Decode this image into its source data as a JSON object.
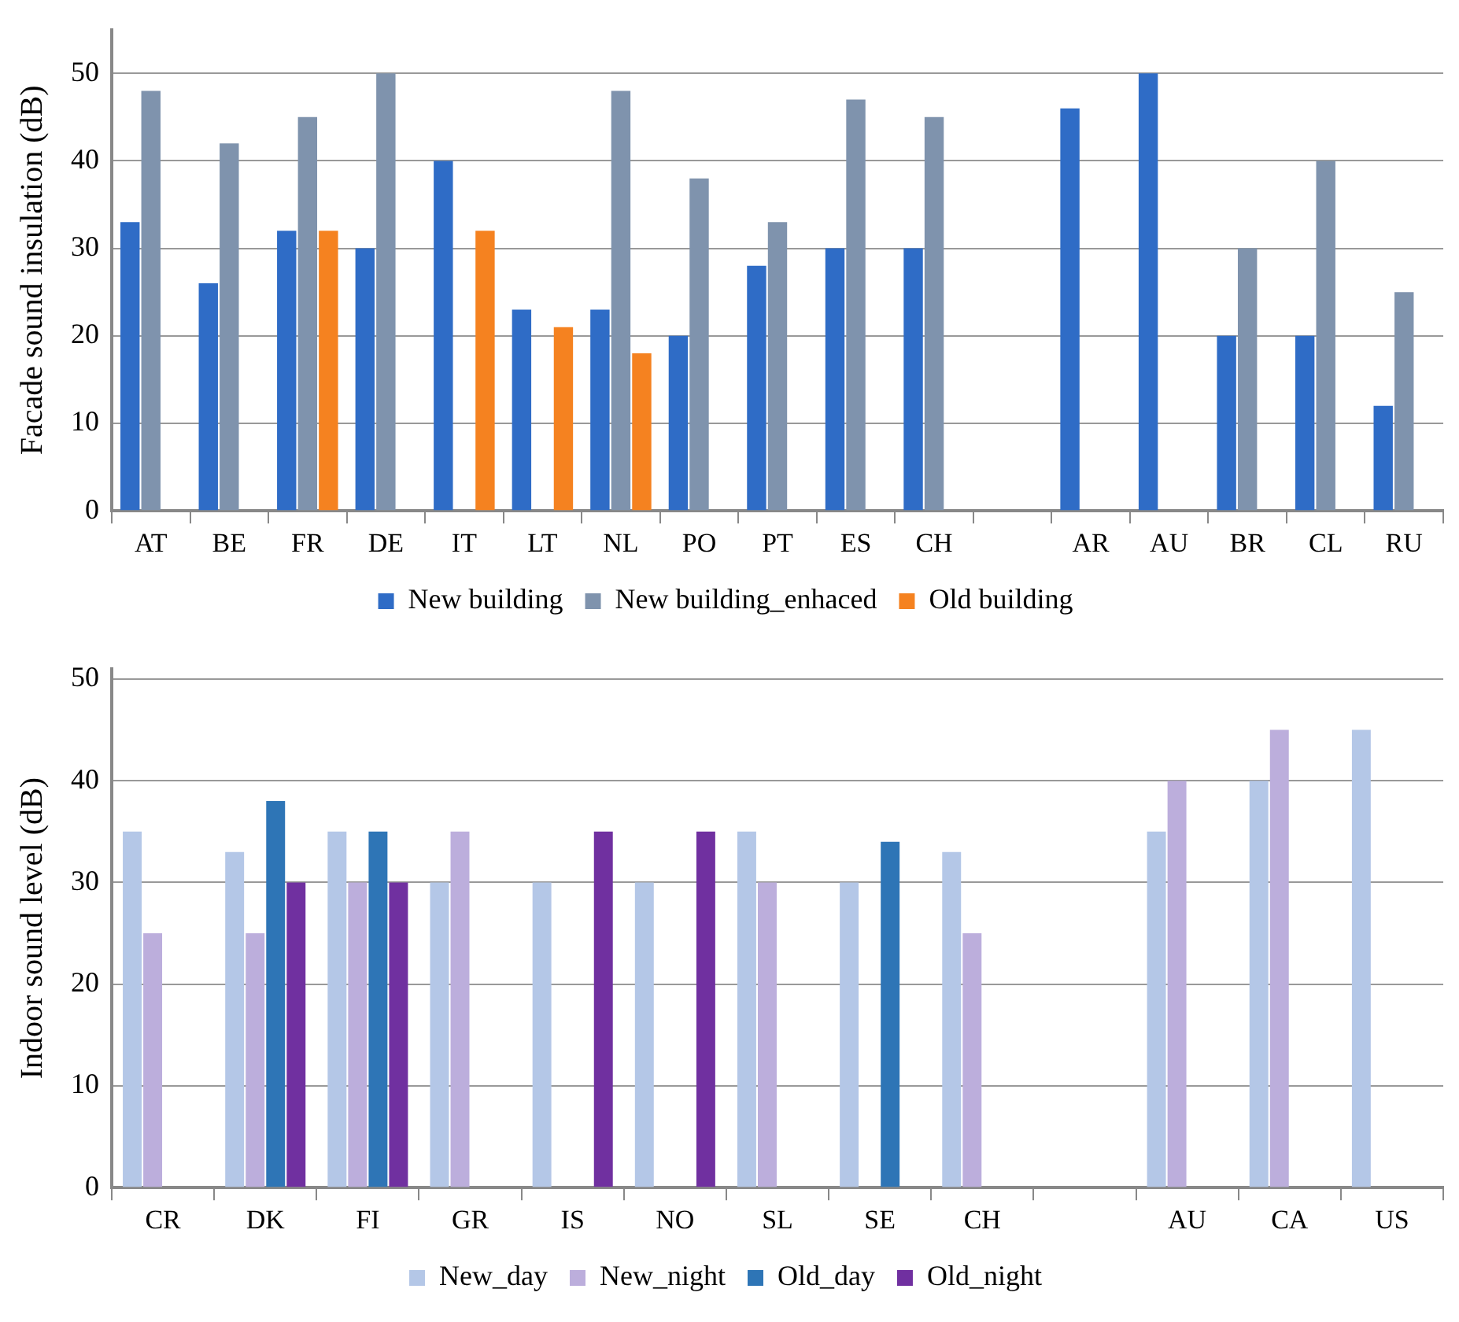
{
  "chart_data": [
    {
      "type": "bar",
      "ylabel": "Facade sound insulation (dB)",
      "categories": [
        "AT",
        "BE",
        "FR",
        "DE",
        "IT",
        "LT",
        "NL",
        "PO",
        "PT",
        "ES",
        "CH",
        null,
        "AR",
        "AU",
        "BR",
        "CL",
        "RU"
      ],
      "series": [
        {
          "name": "New building",
          "color": "#2f6cc6",
          "values": [
            33,
            26,
            32,
            30,
            40,
            23,
            23,
            20,
            28,
            30,
            30,
            null,
            46,
            50,
            20,
            20,
            12
          ]
        },
        {
          "name": "New building_enhaced",
          "color": "#7f93ad",
          "values": [
            48,
            42,
            45,
            50,
            null,
            null,
            48,
            38,
            33,
            47,
            45,
            null,
            null,
            null,
            30,
            40,
            25
          ]
        },
        {
          "name": "Old building",
          "color": "#f58220",
          "values": [
            null,
            null,
            32,
            null,
            32,
            21,
            18,
            null,
            null,
            null,
            null,
            null,
            null,
            null,
            null,
            null,
            null
          ]
        }
      ],
      "ylim": [
        0,
        55
      ],
      "yticks": [
        0,
        10,
        20,
        30,
        40,
        50
      ],
      "grid": "y",
      "legend": "bottom"
    },
    {
      "type": "bar",
      "ylabel": "Indoor sound level (dB)",
      "categories": [
        "CR",
        "DK",
        "FI",
        "GR",
        "IS",
        "NO",
        "SL",
        "SE",
        "CH",
        null,
        "AU",
        "CA",
        "US"
      ],
      "series": [
        {
          "name": "New_day",
          "color": "#b4c7e7",
          "values": [
            35,
            33,
            35,
            30,
            30,
            30,
            35,
            30,
            33,
            null,
            35,
            40,
            45
          ]
        },
        {
          "name": "New_night",
          "color": "#bcaedc",
          "values": [
            25,
            25,
            30,
            35,
            null,
            null,
            30,
            null,
            25,
            null,
            40,
            45,
            null
          ]
        },
        {
          "name": "Old_day",
          "color": "#2e75b6",
          "values": [
            null,
            38,
            35,
            null,
            null,
            null,
            null,
            34,
            null,
            null,
            null,
            null,
            null
          ]
        },
        {
          "name": "Old_night",
          "color": "#7030a0",
          "values": [
            null,
            30,
            30,
            null,
            35,
            35,
            null,
            null,
            null,
            null,
            null,
            null,
            null
          ]
        }
      ],
      "ylim": [
        0,
        51
      ],
      "yticks": [
        0,
        10,
        20,
        30,
        40,
        50
      ],
      "grid": "y",
      "legend": "bottom"
    }
  ]
}
